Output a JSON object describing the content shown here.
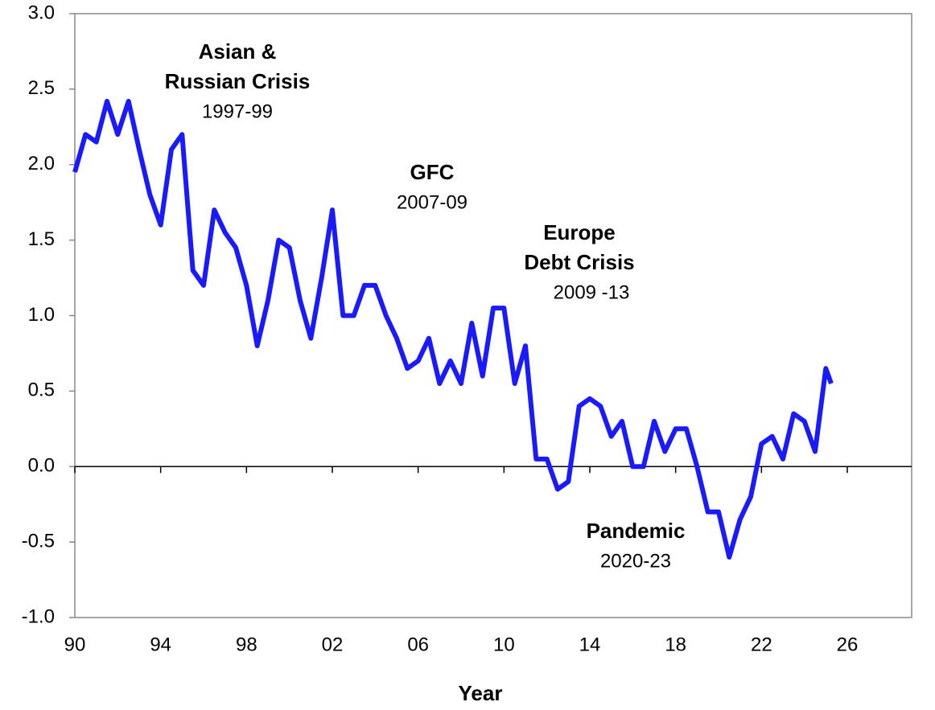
{
  "chart_data": {
    "type": "line",
    "x_label": "Year",
    "x": [
      1990,
      1990.5,
      1991,
      1991.5,
      1992,
      1992.5,
      1993,
      1993.5,
      1994,
      1994.5,
      1995,
      1995.5,
      1996,
      1996.5,
      1997,
      1997.5,
      1998,
      1998.5,
      1999,
      1999.5,
      2000,
      2000.5,
      2001,
      2001.5,
      2002,
      2002.5,
      2003,
      2003.5,
      2004,
      2004.5,
      2005,
      2005.5,
      2006,
      2006.5,
      2007,
      2007.5,
      2008,
      2008.5,
      2009,
      2009.5,
      2010,
      2010.5,
      2011,
      2011.5,
      2012,
      2012.5,
      2013,
      2013.5,
      2014,
      2014.5,
      2015,
      2015.5,
      2016,
      2016.5,
      2017,
      2017.5,
      2018,
      2018.5,
      2019,
      2019.5,
      2020,
      2020.5,
      2021,
      2021.5,
      2022,
      2022.5,
      2023,
      2023.5,
      2024,
      2024.5,
      2025,
      2025.25
    ],
    "series": [
      {
        "color": "#1a1aff",
        "values": [
          1.95,
          2.2,
          2.15,
          2.42,
          2.2,
          2.42,
          2.1,
          1.8,
          1.6,
          2.1,
          2.2,
          1.3,
          1.2,
          1.7,
          1.55,
          1.45,
          1.2,
          0.8,
          1.1,
          1.5,
          1.45,
          1.1,
          0.85,
          1.25,
          1.7,
          1.0,
          1.0,
          1.2,
          1.2,
          1.0,
          0.85,
          0.65,
          0.7,
          0.85,
          0.55,
          0.7,
          0.55,
          0.95,
          0.6,
          1.05,
          1.05,
          0.55,
          0.8,
          0.05,
          0.05,
          -0.15,
          -0.1,
          0.4,
          0.45,
          0.4,
          0.2,
          0.3,
          0.0,
          0.0,
          0.3,
          0.1,
          0.25,
          0.25,
          0.0,
          -0.3,
          -0.3,
          -0.6,
          -0.35,
          -0.2,
          0.15,
          0.2,
          0.05,
          0.35,
          0.3,
          0.1,
          0.65,
          0.55
        ]
      }
    ],
    "xlim": [
      1990,
      2029
    ],
    "xticks": [
      {
        "value": 1990,
        "label": "90"
      },
      {
        "value": 1994,
        "label": "94"
      },
      {
        "value": 1998,
        "label": "98"
      },
      {
        "value": 2002,
        "label": "02"
      },
      {
        "value": 2006,
        "label": "06"
      },
      {
        "value": 2010,
        "label": "10"
      },
      {
        "value": 2014,
        "label": "14"
      },
      {
        "value": 2018,
        "label": "18"
      },
      {
        "value": 2022,
        "label": "22"
      },
      {
        "value": 2026,
        "label": "26"
      }
    ],
    "ylim": [
      -1,
      3
    ],
    "yticks": [
      {
        "value": -1,
        "label": "-1.0"
      },
      -0.5,
      {
        "value": 0,
        "label": "0.0"
      },
      0.5,
      {
        "value": 1,
        "label": "1.0"
      },
      1.5,
      {
        "value": 2,
        "label": "2.0"
      },
      2.5,
      {
        "value": 3,
        "label": "3.0"
      }
    ],
    "annotations": [
      {
        "lines": [
          {
            "text": "Asian &",
            "bold": true
          },
          {
            "text": "Russian Crisis",
            "bold": true
          },
          {
            "text": "1997-99",
            "bold": false
          }
        ]
      },
      {
        "lines": [
          {
            "text": "GFC",
            "bold": true
          },
          {
            "text": "2007-09",
            "bold": false
          }
        ]
      },
      {
        "lines": [
          {
            "text": "Europe",
            "bold": true
          },
          {
            "text": "Debt Crisis",
            "bold": true
          },
          {
            "text": "2009 -13",
            "bold": false
          }
        ]
      },
      {
        "lines": [
          {
            "text": "Pandemic",
            "bold": true
          },
          {
            "text": "2020-23",
            "bold": false
          }
        ]
      }
    ]
  }
}
